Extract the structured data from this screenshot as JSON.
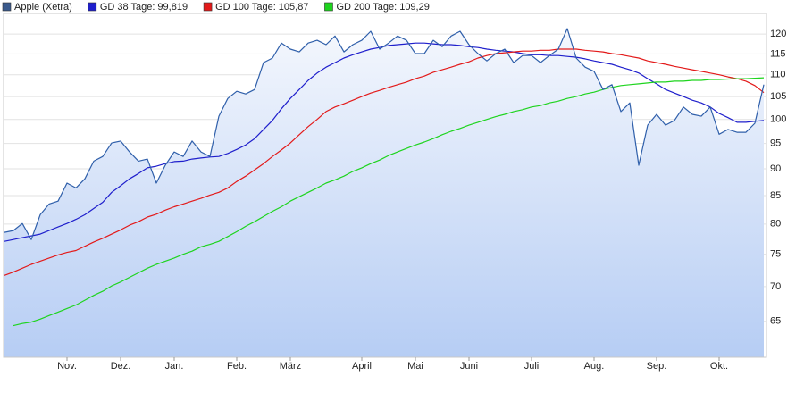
{
  "chart_data": {
    "type": "line",
    "categories": [
      null,
      null,
      null,
      null,
      null,
      null,
      null,
      "Nov.",
      null,
      null,
      null,
      null,
      null,
      "Dez.",
      null,
      null,
      null,
      null,
      null,
      "Jan.",
      null,
      null,
      null,
      null,
      null,
      null,
      "Feb.",
      null,
      null,
      null,
      null,
      null,
      "März",
      null,
      null,
      null,
      null,
      null,
      null,
      null,
      "April",
      null,
      null,
      null,
      null,
      null,
      "Mai",
      null,
      null,
      null,
      null,
      null,
      "Juni",
      null,
      null,
      null,
      null,
      null,
      null,
      "Juli",
      null,
      null,
      null,
      null,
      null,
      null,
      "Aug.",
      null,
      null,
      null,
      null,
      null,
      null,
      "Sep.",
      null,
      null,
      null,
      null,
      null,
      null,
      "Okt.",
      null,
      null,
      null,
      null,
      null
    ],
    "series": [
      {
        "name": "Apple (Xetra)",
        "color": "#2f5faa",
        "legend_color": "#3a5a8c",
        "area": true,
        "values": [
          78.6,
          78.9,
          80.1,
          77.4,
          81.6,
          83.5,
          84.0,
          87.3,
          86.4,
          88.1,
          91.5,
          92.4,
          95.1,
          95.5,
          93.3,
          91.5,
          91.9,
          87.3,
          90.7,
          93.3,
          92.4,
          95.5,
          93.3,
          92.4,
          100.7,
          104.6,
          106.2,
          105.6,
          106.6,
          112.9,
          114.0,
          117.7,
          116.2,
          115.5,
          117.7,
          118.4,
          117.3,
          119.5,
          115.5,
          117.3,
          118.4,
          120.7,
          116.2,
          117.7,
          119.5,
          118.4,
          115.1,
          115.1,
          118.4,
          116.8,
          119.5,
          120.7,
          117.3,
          115.1,
          113.3,
          115.1,
          116.2,
          112.9,
          114.6,
          114.6,
          112.9,
          114.6,
          116.2,
          121.4,
          114.0,
          111.8,
          110.8,
          106.6,
          107.7,
          101.7,
          103.6,
          90.7,
          98.8,
          101.1,
          98.8,
          99.8,
          102.7,
          101.1,
          100.7,
          102.7,
          96.9,
          97.9,
          97.3,
          97.3,
          99.2,
          107.7
        ]
      },
      {
        "name": "GD 38 Tage: 99,819",
        "color": "#1f1fcc",
        "legend_color": "#1f1fcc",
        "values": [
          77.1,
          77.4,
          77.7,
          78.0,
          78.3,
          78.9,
          79.5,
          80.1,
          80.8,
          81.6,
          82.7,
          83.8,
          85.6,
          86.8,
          88.1,
          89.1,
          90.2,
          90.5,
          91.0,
          91.4,
          91.5,
          91.9,
          92.1,
          92.3,
          92.4,
          93.0,
          93.8,
          94.7,
          96.0,
          97.9,
          99.8,
          102.3,
          104.6,
          106.6,
          108.7,
          110.4,
          111.8,
          112.9,
          114.0,
          114.8,
          115.5,
          116.2,
          116.6,
          117.1,
          117.3,
          117.5,
          117.7,
          117.7,
          117.5,
          117.3,
          117.3,
          117.1,
          116.8,
          116.6,
          116.2,
          115.9,
          115.7,
          115.5,
          115.1,
          114.8,
          114.8,
          114.6,
          114.6,
          114.4,
          114.2,
          113.8,
          113.3,
          112.9,
          112.5,
          111.8,
          111.2,
          110.4,
          109.1,
          107.9,
          106.6,
          105.8,
          105.0,
          104.2,
          103.6,
          102.7,
          101.3,
          100.4,
          99.4,
          99.4,
          99.6,
          99.8
        ]
      },
      {
        "name": "GD 100 Tage: 105,87",
        "color": "#e31a1a",
        "legend_color": "#e31a1a",
        "values": [
          71.7,
          72.2,
          72.8,
          73.4,
          73.9,
          74.4,
          74.9,
          75.3,
          75.6,
          76.3,
          77.0,
          77.6,
          78.3,
          79.0,
          79.8,
          80.4,
          81.2,
          81.7,
          82.4,
          83.0,
          83.5,
          84.0,
          84.5,
          85.1,
          85.6,
          86.4,
          87.6,
          88.6,
          89.8,
          91.0,
          92.4,
          93.7,
          95.1,
          96.8,
          98.5,
          100.0,
          101.7,
          102.7,
          103.4,
          104.2,
          105.0,
          105.8,
          106.4,
          107.1,
          107.7,
          108.3,
          109.1,
          109.7,
          110.6,
          111.2,
          111.8,
          112.5,
          113.1,
          114.0,
          114.6,
          115.1,
          115.3,
          115.5,
          115.7,
          115.7,
          115.9,
          115.9,
          116.2,
          116.2,
          116.2,
          115.9,
          115.7,
          115.5,
          115.1,
          114.8,
          114.4,
          114.0,
          113.3,
          112.9,
          112.5,
          112.0,
          111.6,
          111.2,
          110.8,
          110.4,
          110.0,
          109.5,
          109.1,
          108.5,
          107.5,
          105.9
        ]
      },
      {
        "name": "GD 200 Tage: 109,29",
        "color": "#1ed41e",
        "legend_color": "#1ed41e",
        "values": [
          null,
          64.4,
          64.7,
          64.9,
          65.3,
          65.8,
          66.3,
          66.8,
          67.3,
          68.0,
          68.7,
          69.3,
          70.1,
          70.7,
          71.4,
          72.1,
          72.8,
          73.4,
          73.9,
          74.4,
          75.0,
          75.5,
          76.2,
          76.6,
          77.1,
          77.9,
          78.7,
          79.6,
          80.4,
          81.3,
          82.2,
          83.0,
          84.0,
          84.8,
          85.6,
          86.4,
          87.3,
          87.9,
          88.6,
          89.5,
          90.2,
          91.0,
          91.7,
          92.6,
          93.3,
          94.0,
          94.7,
          95.3,
          96.0,
          96.8,
          97.5,
          98.1,
          98.8,
          99.4,
          100.0,
          100.6,
          101.1,
          101.7,
          102.1,
          102.7,
          103.0,
          103.6,
          104.0,
          104.6,
          105.0,
          105.6,
          106.0,
          106.6,
          107.1,
          107.5,
          107.7,
          107.9,
          108.1,
          108.3,
          108.3,
          108.5,
          108.5,
          108.7,
          108.7,
          108.9,
          108.9,
          109.0,
          109.1,
          109.1,
          109.2,
          109.3
        ]
      }
    ],
    "ylim": [
      60.2,
      125.4
    ],
    "yticks": [
      65,
      70,
      75,
      80,
      85,
      90,
      95,
      100,
      105,
      110,
      115,
      120
    ],
    "log_y": true,
    "grid": true,
    "legend": "top"
  }
}
